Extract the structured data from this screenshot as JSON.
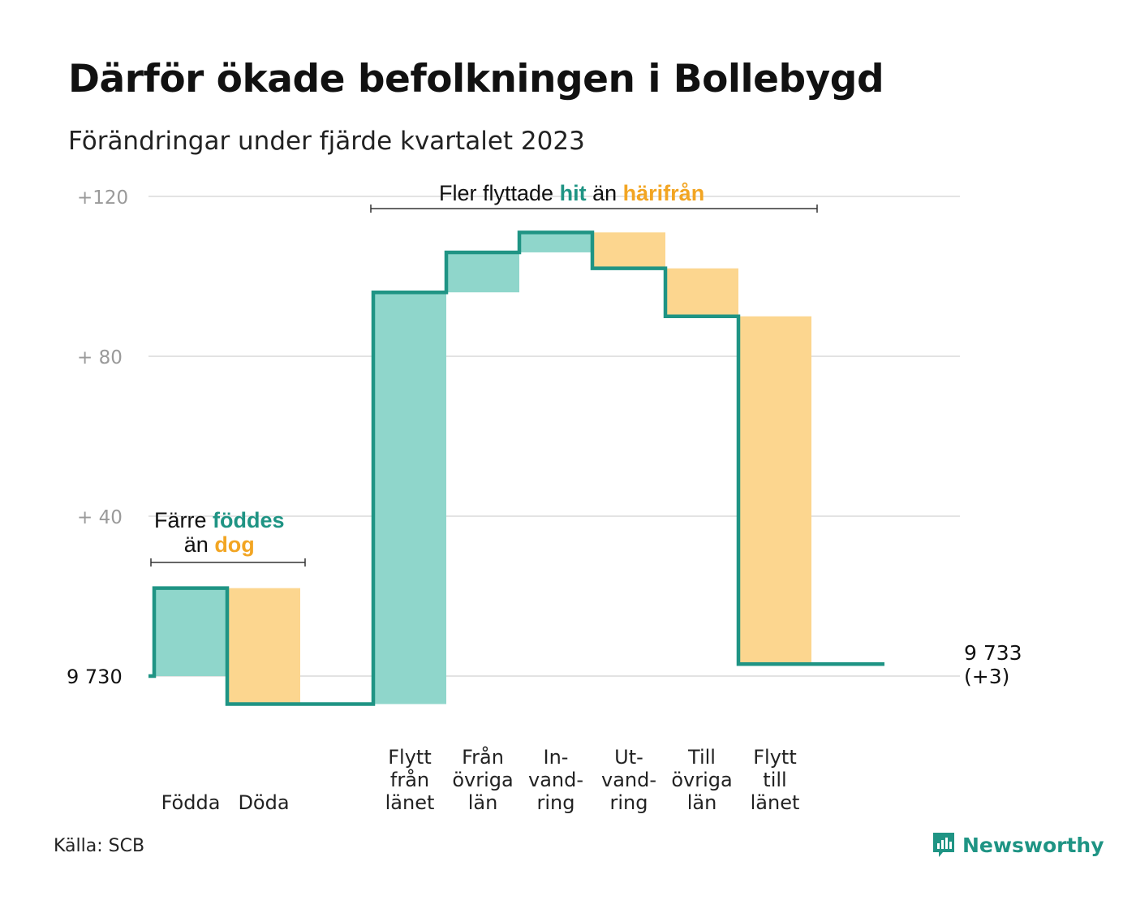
{
  "title": "Därför ökade befolkningen i Bollebygd",
  "subtitle": "Förändringar under fjärde kvartalet 2023",
  "source": "Källa: SCB",
  "logo": {
    "text": "Newsworthy",
    "icon": "newsworthy-logo-icon"
  },
  "colors": {
    "line": "#1f9484",
    "increase": "#8fd6cb",
    "decrease": "#fcd68f",
    "green_text": "#1f9484",
    "orange_text": "#f2a523",
    "grid": "#e3e3e3"
  },
  "annotations": {
    "births": {
      "pre": "Färre",
      "green": "föddes",
      "mid": "än",
      "orange": "dog"
    },
    "moves": {
      "pre": "Fler flyttade",
      "green": "hit",
      "mid": "än",
      "orange": "härifrån"
    }
  },
  "chart_data": {
    "type": "waterfall",
    "y_axis": {
      "ticks": [
        {
          "value": 0,
          "label": "9  730"
        },
        {
          "value": 40,
          "label": "+  40"
        },
        {
          "value": 80,
          "label": "+  80"
        },
        {
          "value": 120,
          "label": "+120"
        }
      ],
      "ylim": [
        -7,
        120
      ],
      "grid": true
    },
    "start_value": 0,
    "steps": [
      {
        "label_lines": [
          "Födda"
        ],
        "change": 22
      },
      {
        "label_lines": [
          "Döda"
        ],
        "change": -29
      },
      {
        "label_lines": [
          ""
        ],
        "change": 0
      },
      {
        "label_lines": [
          "Flytt",
          "från",
          "länet"
        ],
        "change": 103
      },
      {
        "label_lines": [
          "Från",
          "övriga",
          "län"
        ],
        "change": 10
      },
      {
        "label_lines": [
          "In-",
          "vand-",
          "ring"
        ],
        "change": 5
      },
      {
        "label_lines": [
          "Ut-",
          "vand-",
          "ring"
        ],
        "change": -9
      },
      {
        "label_lines": [
          "Till",
          "övriga",
          "län"
        ],
        "change": -12
      },
      {
        "label_lines": [
          "Flytt",
          "till",
          "länet"
        ],
        "change": -87
      },
      {
        "label_lines": [
          ""
        ],
        "change": 0
      }
    ],
    "end_label_lines": [
      "9 733",
      "(+3)"
    ],
    "end_value": 3
  }
}
